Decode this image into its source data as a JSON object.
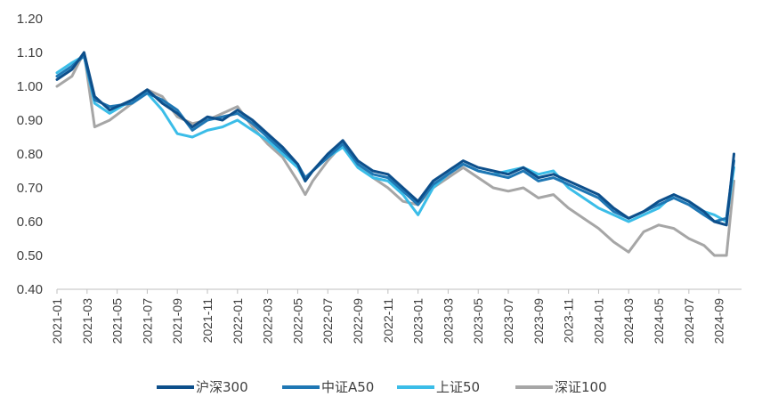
{
  "chart_data": {
    "type": "line",
    "title": "",
    "xlabel": "",
    "ylabel": "",
    "ylim": [
      0.4,
      1.2
    ],
    "yticks": [
      "0.40",
      "0.50",
      "0.60",
      "0.70",
      "0.80",
      "0.90",
      "1.00",
      "1.10",
      "1.20"
    ],
    "ytick_values": [
      0.4,
      0.5,
      0.6,
      0.7,
      0.8,
      0.9,
      1.0,
      1.1,
      1.2
    ],
    "xlim": [
      0,
      45.5
    ],
    "xticks": [
      "2021-01",
      "2021-03",
      "2021-05",
      "2021-07",
      "2021-09",
      "2021-11",
      "2022-01",
      "2022-03",
      "2022-05",
      "2022-07",
      "2022-09",
      "2022-11",
      "2023-01",
      "2023-03",
      "2023-05",
      "2023-07",
      "2023-09",
      "2023-11",
      "2024-01",
      "2024-03",
      "2024-05",
      "2024-07",
      "2024-09"
    ],
    "grid": false,
    "legend_position": "bottom",
    "x": [
      0,
      1,
      1.8,
      2.5,
      3.5,
      5,
      6,
      7,
      8,
      9,
      10,
      11,
      12,
      13,
      14,
      15,
      16,
      16.5,
      17,
      18,
      19,
      20,
      21,
      22,
      23,
      24,
      25,
      26,
      27,
      28,
      29,
      30,
      31,
      32,
      33,
      34,
      35,
      36,
      37,
      38,
      39,
      40,
      41,
      42,
      43,
      43.7,
      44.5,
      45
    ],
    "series": [
      {
        "name": "沪深300",
        "color": "#0d4f8b",
        "values": [
          1.02,
          1.05,
          1.1,
          0.97,
          0.93,
          0.96,
          0.99,
          0.95,
          0.92,
          0.88,
          0.91,
          0.9,
          0.93,
          0.9,
          0.86,
          0.82,
          0.77,
          0.72,
          0.75,
          0.8,
          0.84,
          0.78,
          0.75,
          0.74,
          0.7,
          0.66,
          0.72,
          0.75,
          0.78,
          0.76,
          0.75,
          0.74,
          0.76,
          0.73,
          0.74,
          0.72,
          0.7,
          0.68,
          0.64,
          0.61,
          0.63,
          0.66,
          0.68,
          0.66,
          0.63,
          0.6,
          0.59,
          0.8
        ]
      },
      {
        "name": "中证A50",
        "color": "#1f77b4",
        "values": [
          1.03,
          1.06,
          1.09,
          0.96,
          0.94,
          0.95,
          0.98,
          0.96,
          0.93,
          0.87,
          0.9,
          0.91,
          0.92,
          0.89,
          0.85,
          0.81,
          0.77,
          0.73,
          0.75,
          0.79,
          0.83,
          0.77,
          0.74,
          0.73,
          0.69,
          0.65,
          0.71,
          0.74,
          0.77,
          0.75,
          0.74,
          0.73,
          0.75,
          0.72,
          0.73,
          0.71,
          0.69,
          0.67,
          0.63,
          0.61,
          0.63,
          0.65,
          0.67,
          0.65,
          0.62,
          0.6,
          0.61,
          0.78
        ]
      },
      {
        "name": "上证50",
        "color": "#3bbde8",
        "values": [
          1.04,
          1.07,
          1.09,
          0.95,
          0.92,
          0.96,
          0.98,
          0.93,
          0.86,
          0.85,
          0.87,
          0.88,
          0.9,
          0.87,
          0.84,
          0.8,
          0.76,
          0.72,
          0.75,
          0.79,
          0.82,
          0.76,
          0.73,
          0.72,
          0.68,
          0.62,
          0.7,
          0.74,
          0.77,
          0.75,
          0.74,
          0.75,
          0.76,
          0.74,
          0.75,
          0.7,
          0.67,
          0.64,
          0.62,
          0.6,
          0.62,
          0.64,
          0.68,
          0.66,
          0.63,
          0.62,
          0.6,
          0.76
        ]
      },
      {
        "name": "深证100",
        "color": "#a6a6a6",
        "values": [
          1.0,
          1.03,
          1.1,
          0.88,
          0.9,
          0.95,
          0.99,
          0.97,
          0.91,
          0.89,
          0.9,
          0.92,
          0.94,
          0.88,
          0.83,
          0.79,
          0.72,
          0.68,
          0.72,
          0.78,
          0.83,
          0.77,
          0.73,
          0.7,
          0.66,
          0.65,
          0.7,
          0.73,
          0.76,
          0.73,
          0.7,
          0.69,
          0.7,
          0.67,
          0.68,
          0.64,
          0.61,
          0.58,
          0.54,
          0.51,
          0.57,
          0.59,
          0.58,
          0.55,
          0.53,
          0.5,
          0.5,
          0.72
        ]
      }
    ]
  }
}
